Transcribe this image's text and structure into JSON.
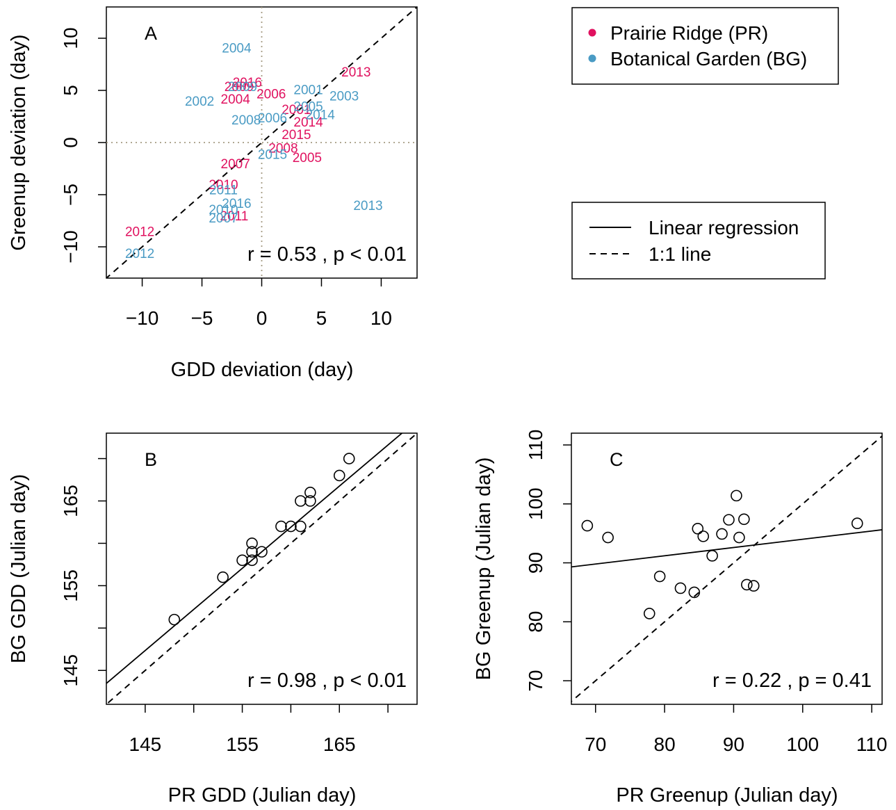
{
  "colors": {
    "pr": "#e0115f",
    "bg": "#4a9bc4",
    "refline": "#a59b83"
  },
  "legend_sites": {
    "items": [
      {
        "label": "Prairie Ridge (PR)",
        "color": "#e0115f"
      },
      {
        "label": "Botanical Garden (BG)",
        "color": "#4a9bc4"
      }
    ]
  },
  "legend_lines": {
    "items": [
      {
        "label": "Linear regression",
        "style": "solid"
      },
      {
        "label": "1:1 line",
        "style": "dashed"
      }
    ]
  },
  "chart_data": [
    {
      "id": "A",
      "type": "scatter",
      "panel_label": "A",
      "xlabel": "GDD deviation (day)",
      "ylabel": "Greenup deviation (day)",
      "xlim": [
        -13,
        13
      ],
      "ylim": [
        -13,
        13
      ],
      "xticks": [
        -10,
        -5,
        0,
        5,
        10
      ],
      "yticks": [
        -10,
        -5,
        0,
        5,
        10
      ],
      "xtick_labels": [
        "−10",
        "−5",
        "0",
        "5",
        "10"
      ],
      "ytick_labels": [
        "−10",
        "−5",
        "0",
        "5",
        "10"
      ],
      "stat": "r = 0.53 , p < 0.01",
      "reference_lines": {
        "one_to_one": true,
        "zero_lines": true
      },
      "series": [
        {
          "name": "Prairie Ridge (PR)",
          "color": "#e0115f",
          "points": [
            {
              "label": "2013",
              "x": 7.9,
              "y": 6.8
            },
            {
              "label": "2016",
              "x": -1.2,
              "y": 5.8
            },
            {
              "label": "2009",
              "x": -1.9,
              "y": 5.4
            },
            {
              "label": "2006",
              "x": 0.8,
              "y": 4.7
            },
            {
              "label": "2004",
              "x": -2.2,
              "y": 4.2
            },
            {
              "label": "2001",
              "x": 2.9,
              "y": 3.2
            },
            {
              "label": "2014",
              "x": 3.9,
              "y": 2.0
            },
            {
              "label": "2015",
              "x": 2.9,
              "y": 0.8
            },
            {
              "label": "2008",
              "x": 1.8,
              "y": -0.5
            },
            {
              "label": "2005",
              "x": 3.8,
              "y": -1.4
            },
            {
              "label": "2007",
              "x": -2.2,
              "y": -2.0
            },
            {
              "label": "2010",
              "x": -3.2,
              "y": -4.0
            },
            {
              "label": "2011",
              "x": -2.3,
              "y": -7.0
            },
            {
              "label": "2012",
              "x": -10.2,
              "y": -8.5
            }
          ]
        },
        {
          "name": "Botanical Garden (BG)",
          "color": "#4a9bc4",
          "points": [
            {
              "label": "2004",
              "x": -2.1,
              "y": 9.1
            },
            {
              "label": "2001",
              "x": 3.9,
              "y": 5.1
            },
            {
              "label": "2003",
              "x": 6.9,
              "y": 4.5
            },
            {
              "label": "2002",
              "x": -5.2,
              "y": 4.0
            },
            {
              "label": "2009",
              "x": -1.6,
              "y": 5.4
            },
            {
              "label": "2005",
              "x": 3.9,
              "y": 3.5
            },
            {
              "label": "2014",
              "x": 4.9,
              "y": 2.7
            },
            {
              "label": "2008",
              "x": -1.3,
              "y": 2.2
            },
            {
              "label": "2006",
              "x": 0.9,
              "y": 2.4
            },
            {
              "label": "2015",
              "x": 0.9,
              "y": -1.1
            },
            {
              "label": "2011",
              "x": -3.2,
              "y": -4.5
            },
            {
              "label": "2016",
              "x": -2.1,
              "y": -5.8
            },
            {
              "label": "2010",
              "x": -3.2,
              "y": -6.4
            },
            {
              "label": "2007",
              "x": -3.2,
              "y": -7.2
            },
            {
              "label": "2013",
              "x": 8.9,
              "y": -6.0
            },
            {
              "label": "2012",
              "x": -10.2,
              "y": -10.6
            }
          ]
        }
      ]
    },
    {
      "id": "B",
      "type": "scatter",
      "panel_label": "B",
      "xlabel": "PR GDD (Julian day)",
      "ylabel": "BG GDD (Julian day)",
      "xlim": [
        141,
        173
      ],
      "ylim": [
        141,
        173
      ],
      "xticks": [
        145,
        150,
        155,
        160,
        165,
        170
      ],
      "yticks": [
        145,
        150,
        155,
        160,
        165,
        170
      ],
      "xtick_labels": [
        "145",
        "",
        "155",
        "",
        "165",
        ""
      ],
      "ytick_labels": [
        "145",
        "",
        "155",
        "",
        "165",
        ""
      ],
      "stat": "r = 0.98 , p < 0.01",
      "regression": {
        "slope": 0.97,
        "intercept": 6.7
      },
      "reference_lines": {
        "one_to_one": true,
        "zero_lines": false
      },
      "points": [
        {
          "x": 148,
          "y": 151
        },
        {
          "x": 153,
          "y": 156
        },
        {
          "x": 155,
          "y": 158
        },
        {
          "x": 156,
          "y": 158
        },
        {
          "x": 156,
          "y": 159
        },
        {
          "x": 156,
          "y": 160
        },
        {
          "x": 157,
          "y": 159
        },
        {
          "x": 159,
          "y": 162
        },
        {
          "x": 160,
          "y": 162
        },
        {
          "x": 161,
          "y": 162
        },
        {
          "x": 161,
          "y": 165
        },
        {
          "x": 162,
          "y": 165
        },
        {
          "x": 162,
          "y": 166
        },
        {
          "x": 165,
          "y": 168
        },
        {
          "x": 166,
          "y": 170
        }
      ]
    },
    {
      "id": "C",
      "type": "scatter",
      "panel_label": "C",
      "xlabel": "PR Greenup (Julian day)",
      "ylabel": "BG Greenup (Julian day)",
      "xlim": [
        66.5,
        111.5
      ],
      "ylim": [
        66,
        112
      ],
      "xticks": [
        70,
        80,
        90,
        100,
        110
      ],
      "yticks": [
        70,
        80,
        90,
        100,
        110
      ],
      "xtick_labels": [
        "70",
        "80",
        "90",
        "100",
        "110"
      ],
      "ytick_labels": [
        "70",
        "80",
        "90",
        "100",
        "110"
      ],
      "stat": "r = 0.22 , p =  0.41",
      "regression": {
        "slope": 0.14,
        "intercept": 80.0
      },
      "reference_lines": {
        "one_to_one": true,
        "zero_lines": false
      },
      "points": [
        {
          "x": 68.8,
          "y": 96.3
        },
        {
          "x": 71.8,
          "y": 94.3
        },
        {
          "x": 77.8,
          "y": 81.4
        },
        {
          "x": 79.3,
          "y": 87.7
        },
        {
          "x": 82.3,
          "y": 85.7
        },
        {
          "x": 84.3,
          "y": 85.0
        },
        {
          "x": 84.8,
          "y": 95.8
        },
        {
          "x": 85.6,
          "y": 94.5
        },
        {
          "x": 86.9,
          "y": 91.2
        },
        {
          "x": 88.3,
          "y": 94.9
        },
        {
          "x": 89.3,
          "y": 97.3
        },
        {
          "x": 90.4,
          "y": 101.4
        },
        {
          "x": 90.8,
          "y": 94.3
        },
        {
          "x": 91.5,
          "y": 97.4
        },
        {
          "x": 91.9,
          "y": 86.3
        },
        {
          "x": 92.9,
          "y": 86.1
        },
        {
          "x": 107.9,
          "y": 96.7
        }
      ]
    }
  ]
}
